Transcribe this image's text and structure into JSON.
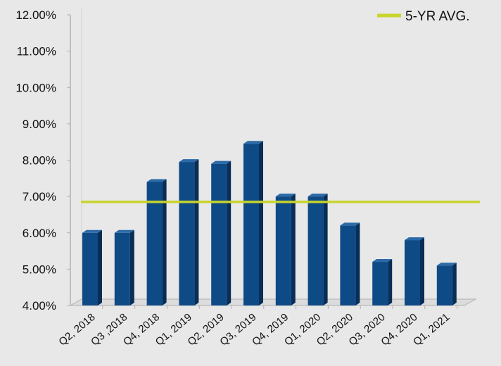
{
  "chart_data": {
    "type": "bar",
    "categories": [
      "Q2, 2018",
      "Q3 ,2018",
      "Q4, 2018",
      "Q1, 2019",
      "Q2, 2019",
      "Q3, 2019",
      "Q4, 2019",
      "Q1, 2020",
      "Q2, 2020",
      "Q3, 2020",
      "Q4, 2020",
      "Q1, 2021"
    ],
    "values": [
      6.0,
      6.0,
      7.4,
      7.95,
      7.9,
      8.45,
      7.0,
      7.0,
      6.2,
      5.2,
      5.8,
      5.1
    ],
    "yticks": [
      "4.00%",
      "5.00%",
      "6.00%",
      "7.00%",
      "8.00%",
      "9.00%",
      "10.00%",
      "11.00%",
      "12.00%"
    ],
    "ylim": [
      4,
      12
    ],
    "reference_line": {
      "label": "5-YR AVG.",
      "value": 6.85
    },
    "grid": false,
    "legend_position": "top-right",
    "colors": {
      "bar_front": "#0e4a86",
      "bar_side": "#082e56",
      "bar_top": "#2c6aa8",
      "average_line": "#c8d42c",
      "axis": "#b0b0b0",
      "background": "#e8e8e8"
    }
  }
}
